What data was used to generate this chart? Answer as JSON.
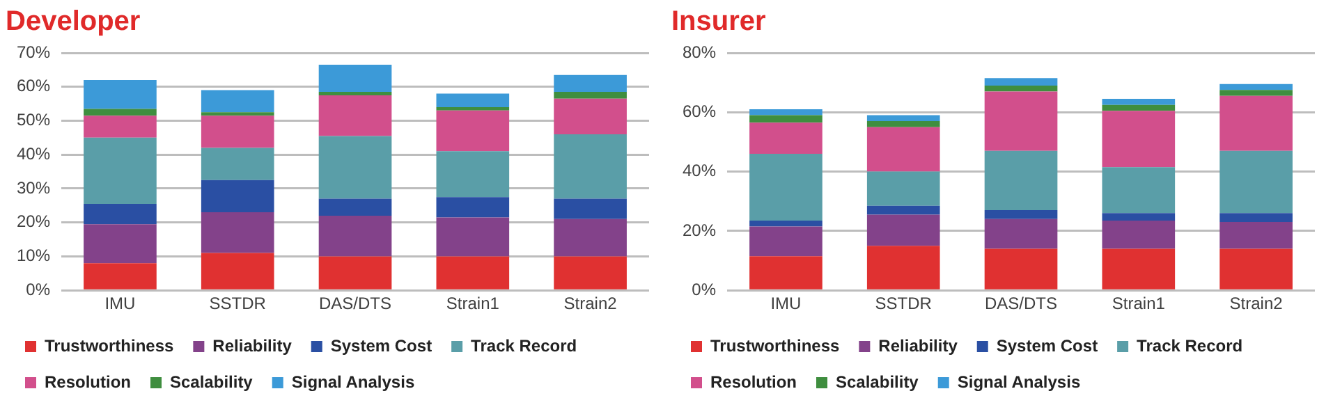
{
  "chart_data": [
    {
      "type": "bar",
      "title": "Developer",
      "stacked": true,
      "grid": "y",
      "legend": "bottom",
      "categories": [
        "IMU",
        "SSTDR",
        "DAS/DTS",
        "Strain1",
        "Strain2"
      ],
      "ylim": [
        0,
        70
      ],
      "yticks": [
        {
          "value": 0,
          "label": "0%"
        },
        {
          "value": 10,
          "label": "10%"
        },
        {
          "value": 20,
          "label": "20%"
        },
        {
          "value": 30,
          "label": "30%"
        },
        {
          "value": 40,
          "label": "40%"
        },
        {
          "value": 50,
          "label": "50%"
        },
        {
          "value": 60,
          "label": "60%"
        },
        {
          "value": 70,
          "label": "70%"
        }
      ],
      "series": [
        {
          "name": "Trustworthiness",
          "color": "#e03131",
          "values": [
            8,
            11,
            10,
            10,
            10
          ]
        },
        {
          "name": "Reliability",
          "color": "#83428a",
          "values": [
            11.5,
            12,
            12,
            11.5,
            11
          ]
        },
        {
          "name": "System Cost",
          "color": "#2a4fa3",
          "values": [
            6,
            9.5,
            5,
            6,
            6
          ]
        },
        {
          "name": "Track Record",
          "color": "#5a9ea8",
          "values": [
            19.5,
            9.5,
            18.5,
            13.5,
            19
          ]
        },
        {
          "name": "Resolution",
          "color": "#d24f8c",
          "values": [
            6.5,
            9.5,
            12,
            12,
            10.5
          ]
        },
        {
          "name": "Scalability",
          "color": "#3f8e3f",
          "values": [
            2,
            1,
            1,
            1,
            2
          ]
        },
        {
          "name": "Signal Analysis",
          "color": "#3c9ad8",
          "values": [
            8.5,
            6.5,
            8,
            4,
            5
          ]
        }
      ]
    },
    {
      "type": "bar",
      "title": "Insurer",
      "stacked": true,
      "grid": "y",
      "legend": "bottom",
      "categories": [
        "IMU",
        "SSTDR",
        "DAS/DTS",
        "Strain1",
        "Strain2"
      ],
      "ylim": [
        0,
        80
      ],
      "yticks": [
        {
          "value": 0,
          "label": "0%"
        },
        {
          "value": 20,
          "label": "20%"
        },
        {
          "value": 40,
          "label": "40%"
        },
        {
          "value": 60,
          "label": "60%"
        },
        {
          "value": 80,
          "label": "80%"
        }
      ],
      "series": [
        {
          "name": "Trustworthiness",
          "color": "#e03131",
          "values": [
            11.5,
            15,
            14,
            14,
            14
          ]
        },
        {
          "name": "Reliability",
          "color": "#83428a",
          "values": [
            10,
            10.5,
            10,
            9.5,
            9
          ]
        },
        {
          "name": "System Cost",
          "color": "#2a4fa3",
          "values": [
            2,
            3,
            3,
            2.5,
            3
          ]
        },
        {
          "name": "Track Record",
          "color": "#5a9ea8",
          "values": [
            22.5,
            11.5,
            20,
            15.5,
            21
          ]
        },
        {
          "name": "Resolution",
          "color": "#d24f8c",
          "values": [
            10.5,
            15,
            20,
            19,
            18.5
          ]
        },
        {
          "name": "Scalability",
          "color": "#3f8e3f",
          "values": [
            2.5,
            2,
            2,
            2,
            2
          ]
        },
        {
          "name": "Signal Analysis",
          "color": "#3c9ad8",
          "values": [
            2,
            2,
            2.5,
            2,
            2
          ]
        }
      ]
    }
  ]
}
